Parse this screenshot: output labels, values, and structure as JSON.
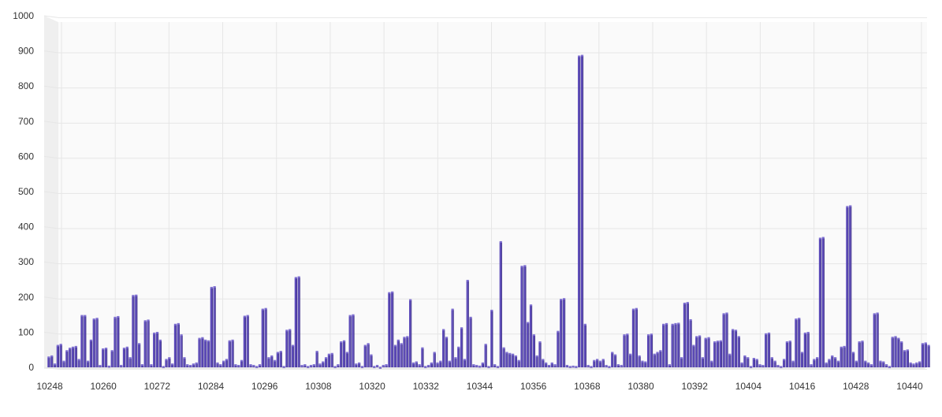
{
  "chart_data": {
    "type": "bar",
    "style": "3d-column",
    "title": "",
    "xlabel": "",
    "ylabel": "",
    "ylim": [
      0,
      1000
    ],
    "y_ticks": [
      "0",
      "100",
      "200",
      "300",
      "400",
      "500",
      "600",
      "700",
      "800",
      "900",
      "1000"
    ],
    "x_tick_labels": [
      "10248",
      "10260",
      "10272",
      "10284",
      "10296",
      "10308",
      "10320",
      "10332",
      "10344",
      "10356",
      "10368",
      "10380",
      "10392",
      "10404",
      "10416",
      "10428",
      "10440"
    ],
    "x_start": 10248,
    "x_end": 10443,
    "grid": true,
    "legend": "none",
    "colors": {
      "bar": "#5b49b8",
      "bar_side": "#3d2f8a",
      "bar_top": "#7e6fd0",
      "grid": "#e6e6e6",
      "wall": "#efefef"
    },
    "values": [
      32,
      35,
      12,
      65,
      68,
      20,
      50,
      57,
      60,
      62,
      25,
      150,
      150,
      20,
      80,
      140,
      142,
      8,
      55,
      57,
      6,
      50,
      145,
      147,
      8,
      57,
      60,
      30,
      207,
      208,
      70,
      10,
      135,
      137,
      10,
      100,
      102,
      80,
      5,
      25,
      30,
      12,
      125,
      127,
      95,
      30,
      10,
      8,
      12,
      15,
      85,
      87,
      80,
      78,
      230,
      232,
      15,
      10,
      20,
      25,
      78,
      80,
      10,
      8,
      22,
      148,
      150,
      10,
      8,
      5,
      10,
      168,
      170,
      30,
      35,
      22,
      45,
      48,
      5,
      108,
      110,
      65,
      258,
      260,
      8,
      10,
      5,
      8,
      10,
      48,
      12,
      18,
      30,
      40,
      42,
      5,
      10,
      75,
      78,
      45,
      150,
      152,
      12,
      15,
      5,
      65,
      70,
      38,
      5,
      8,
      3,
      8,
      10,
      215,
      217,
      65,
      80,
      70,
      88,
      90,
      195,
      15,
      18,
      10,
      58,
      5,
      8,
      15,
      45,
      15,
      20,
      110,
      88,
      20,
      168,
      30,
      60,
      115,
      25,
      250,
      145,
      10,
      8,
      6,
      15,
      68,
      5,
      165,
      10,
      5,
      360,
      58,
      45,
      42,
      40,
      35,
      22,
      290,
      292,
      130,
      180,
      95,
      35,
      75,
      25,
      15,
      8,
      15,
      10,
      105,
      196,
      198,
      8,
      5,
      6,
      5,
      888,
      890,
      125,
      8,
      5,
      22,
      25,
      20,
      25,
      8,
      5,
      45,
      38,
      10,
      8,
      95,
      97,
      40,
      168,
      170,
      35,
      20,
      18,
      95,
      97,
      40,
      45,
      50,
      125,
      127,
      10,
      125,
      127,
      128,
      30,
      185,
      187,
      138,
      65,
      90,
      92,
      30,
      85,
      87,
      20,
      75,
      77,
      78,
      155,
      157,
      40,
      110,
      108,
      90,
      15,
      35,
      30,
      5,
      28,
      25,
      10,
      8,
      98,
      100,
      30,
      20,
      8,
      5,
      25,
      75,
      77,
      20,
      140,
      142,
      45,
      100,
      102,
      10,
      25,
      30,
      370,
      372,
      15,
      25,
      35,
      30,
      20,
      60,
      62,
      460,
      462,
      45,
      20,
      75,
      77,
      20,
      15,
      10,
      155,
      157,
      20,
      18,
      10,
      5,
      88,
      90,
      85,
      75,
      50,
      52,
      15,
      12,
      15,
      18,
      70,
      72,
      65
    ]
  }
}
